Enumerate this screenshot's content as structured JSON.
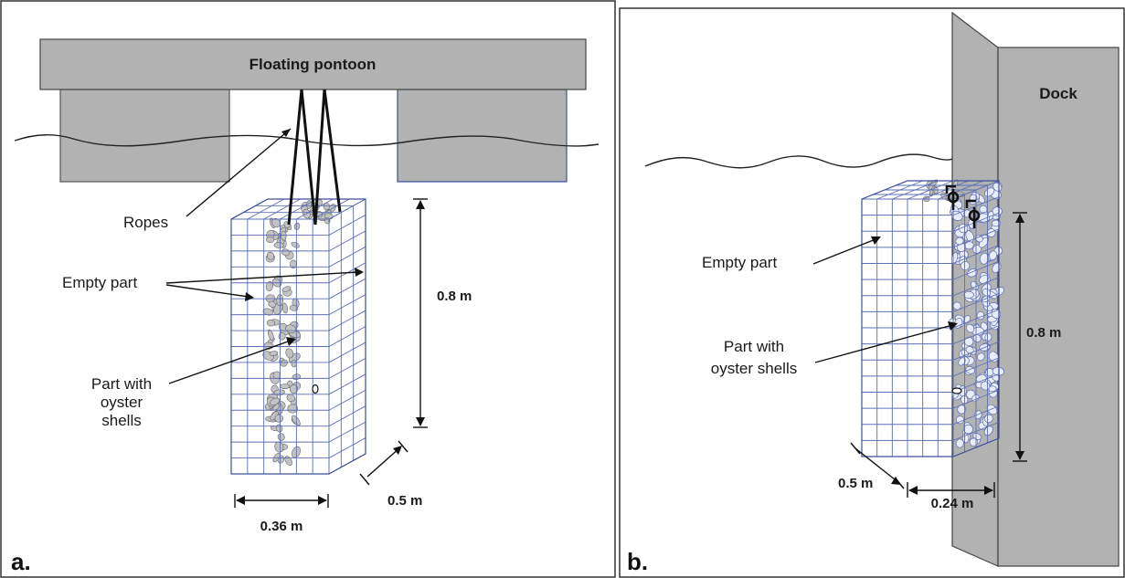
{
  "panel_a": {
    "letter": "a.",
    "pontoon_label": "Floating pontoon",
    "ropes_label": "Ropes",
    "empty_label": "Empty part",
    "oyster_label_lines": [
      "Part with",
      "oyster",
      "shells"
    ],
    "height_label": "0.8 m",
    "width_label": "0.36 m",
    "depth_label": "0.5 m"
  },
  "panel_b": {
    "letter": "b.",
    "dock_label": "Dock",
    "empty_label": "Empty part",
    "oyster_label_lines": [
      "Part with",
      "oyster shells"
    ],
    "height_label": "0.8 m",
    "width_label": "0.24 m",
    "depth_label": "0.5 m"
  },
  "colors": {
    "structure_gray": "#b2b2b2",
    "mesh_blue": "#5b6fb5",
    "shell_gray": "#c3c3c3",
    "border": "#333333"
  }
}
